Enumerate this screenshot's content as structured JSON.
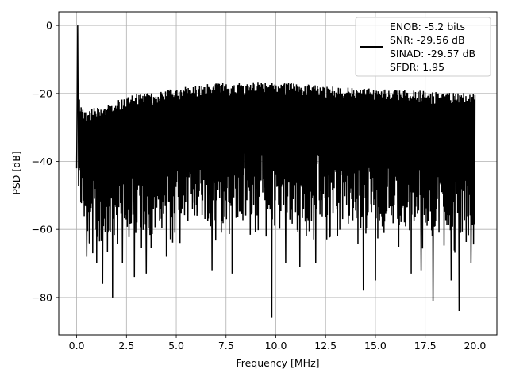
{
  "chart_data": {
    "type": "line",
    "title": "",
    "xlabel": "Frequency [MHz]",
    "ylabel": "PSD [dB]",
    "xlim": [
      -0.9,
      21.1
    ],
    "ylim": [
      -91.0,
      4.0
    ],
    "grid": true,
    "legend_position": "top-right",
    "x_ticks": [
      0.0,
      2.5,
      5.0,
      7.5,
      10.0,
      12.5,
      15.0,
      17.5,
      20.0
    ],
    "x_tick_labels": [
      "0.0",
      "2.5",
      "5.0",
      "7.5",
      "10.0",
      "12.5",
      "15.0",
      "17.5",
      "20.0"
    ],
    "y_ticks": [
      0,
      -20,
      -40,
      -60,
      -80
    ],
    "y_tick_labels": [
      "0",
      "−20",
      "−40",
      "−60",
      "−80"
    ],
    "series": [
      {
        "color": "#000000",
        "peak": {
          "x": 0.05,
          "y": 0.0
        },
        "upper_envelope": [
          [
            0.0,
            -17
          ],
          [
            0.2,
            -23
          ],
          [
            0.5,
            -25
          ],
          [
            1.0,
            -24
          ],
          [
            1.5,
            -23
          ],
          [
            2.0,
            -22
          ],
          [
            2.5,
            -21
          ],
          [
            3.0,
            -20
          ],
          [
            4.0,
            -19.5
          ],
          [
            5.0,
            -18.5
          ],
          [
            6.0,
            -17.5
          ],
          [
            7.0,
            -17
          ],
          [
            8.0,
            -17
          ],
          [
            9.0,
            -16.5
          ],
          [
            10.0,
            -16.5
          ],
          [
            11.0,
            -17
          ],
          [
            12.0,
            -17.5
          ],
          [
            13.0,
            -18
          ],
          [
            14.0,
            -18.5
          ],
          [
            15.0,
            -18.5
          ],
          [
            16.0,
            -19
          ],
          [
            17.0,
            -19
          ],
          [
            18.0,
            -19.5
          ],
          [
            19.0,
            -19.5
          ],
          [
            20.0,
            -19.5
          ]
        ],
        "lower_envelope": [
          [
            0.0,
            -50
          ],
          [
            0.5,
            -62
          ],
          [
            1.0,
            -64
          ],
          [
            2.0,
            -62
          ],
          [
            3.0,
            -60
          ],
          [
            4.0,
            -60
          ],
          [
            5.0,
            -59
          ],
          [
            6.0,
            -57
          ],
          [
            7.0,
            -58
          ],
          [
            8.0,
            -57
          ],
          [
            9.0,
            -57
          ],
          [
            10.0,
            -56
          ],
          [
            11.0,
            -57
          ],
          [
            12.0,
            -58
          ],
          [
            13.0,
            -58
          ],
          [
            14.0,
            -59
          ],
          [
            15.0,
            -58
          ],
          [
            16.0,
            -59
          ],
          [
            17.0,
            -60
          ],
          [
            18.0,
            -61
          ],
          [
            19.0,
            -61
          ],
          [
            20.0,
            -60
          ]
        ],
        "deep_dips": [
          [
            0.5,
            -68
          ],
          [
            0.8,
            -67
          ],
          [
            1.0,
            -70
          ],
          [
            1.3,
            -76
          ],
          [
            1.8,
            -80
          ],
          [
            2.3,
            -70
          ],
          [
            2.9,
            -74
          ],
          [
            3.5,
            -73
          ],
          [
            4.5,
            -68
          ],
          [
            6.8,
            -72
          ],
          [
            7.8,
            -73
          ],
          [
            9.8,
            -86
          ],
          [
            10.5,
            -70
          ],
          [
            11.2,
            -71
          ],
          [
            12.0,
            -70
          ],
          [
            14.4,
            -78
          ],
          [
            15.0,
            -75
          ],
          [
            16.8,
            -73
          ],
          [
            17.3,
            -72
          ],
          [
            17.9,
            -81
          ],
          [
            18.8,
            -75
          ],
          [
            19.2,
            -84
          ],
          [
            19.8,
            -70
          ]
        ]
      }
    ],
    "legend": {
      "lines": [
        "ENOB: -5.2 bits",
        "SNR: -29.56 dB",
        "SINAD: -29.57 dB",
        "SFDR: 1.95"
      ]
    }
  }
}
